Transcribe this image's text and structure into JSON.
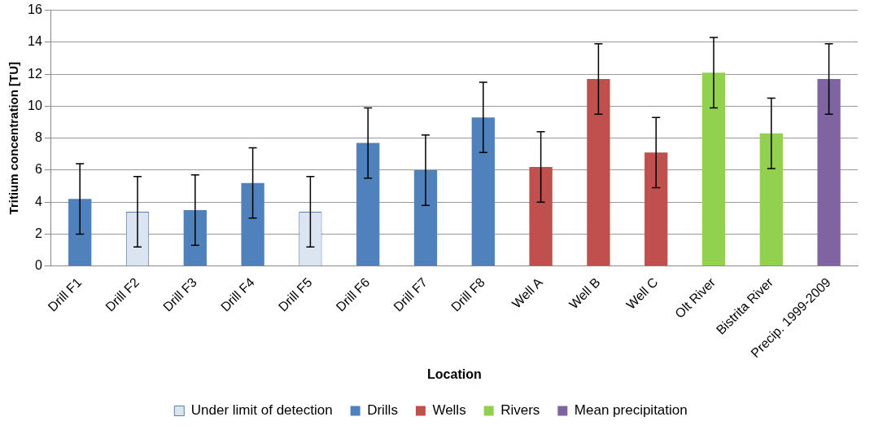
{
  "chart_data": {
    "type": "bar",
    "xlabel": "Location",
    "ylabel": "Tritium concentration [TU]",
    "categories": [
      "Drill F1",
      "Drill F2",
      "Drill F3",
      "Drill F4",
      "Drill F5",
      "Drill F6",
      "Drill F7",
      "Drill F8",
      "Well A",
      "Well B",
      "Well C",
      "Olt River",
      "Bistrita River",
      "Precip. 1999-2009"
    ],
    "series": [
      {
        "name": "Under limit of detection",
        "color": "#dbe5f1",
        "values": [
          null,
          3.4,
          null,
          null,
          3.4,
          null,
          null,
          null,
          null,
          null,
          null,
          null,
          null,
          null
        ],
        "errors": [
          null,
          2.2,
          null,
          null,
          2.2,
          null,
          null,
          null,
          null,
          null,
          null,
          null,
          null,
          null
        ]
      },
      {
        "name": "Drills",
        "color": "#4f81bd",
        "values": [
          4.2,
          null,
          3.5,
          5.2,
          null,
          7.7,
          6.0,
          9.3,
          null,
          null,
          null,
          null,
          null,
          null
        ],
        "errors": [
          2.2,
          null,
          2.2,
          2.2,
          null,
          2.2,
          2.2,
          2.2,
          null,
          null,
          null,
          null,
          null,
          null
        ]
      },
      {
        "name": "Wells",
        "color": "#c0504d",
        "values": [
          null,
          null,
          null,
          null,
          null,
          null,
          null,
          null,
          6.2,
          11.7,
          7.1,
          null,
          null,
          null
        ],
        "errors": [
          null,
          null,
          null,
          null,
          null,
          null,
          null,
          null,
          2.2,
          2.2,
          2.2,
          null,
          null,
          null
        ]
      },
      {
        "name": "Rivers",
        "color": "#92d050",
        "values": [
          null,
          null,
          null,
          null,
          null,
          null,
          null,
          null,
          null,
          null,
          null,
          12.1,
          8.3,
          null
        ],
        "errors": [
          null,
          null,
          null,
          null,
          null,
          null,
          null,
          null,
          null,
          null,
          null,
          2.2,
          2.2,
          null
        ]
      },
      {
        "name": "Mean precipitation",
        "color": "#8064a2",
        "values": [
          null,
          null,
          null,
          null,
          null,
          null,
          null,
          null,
          null,
          null,
          null,
          null,
          null,
          11.7
        ],
        "errors": [
          null,
          null,
          null,
          null,
          null,
          null,
          null,
          null,
          null,
          null,
          null,
          null,
          null,
          2.2
        ]
      }
    ],
    "ylim": [
      0,
      16
    ],
    "yticks": [
      0,
      2,
      4,
      6,
      8,
      10,
      12,
      14,
      16
    ],
    "grid": "y",
    "legend": "bottom"
  }
}
